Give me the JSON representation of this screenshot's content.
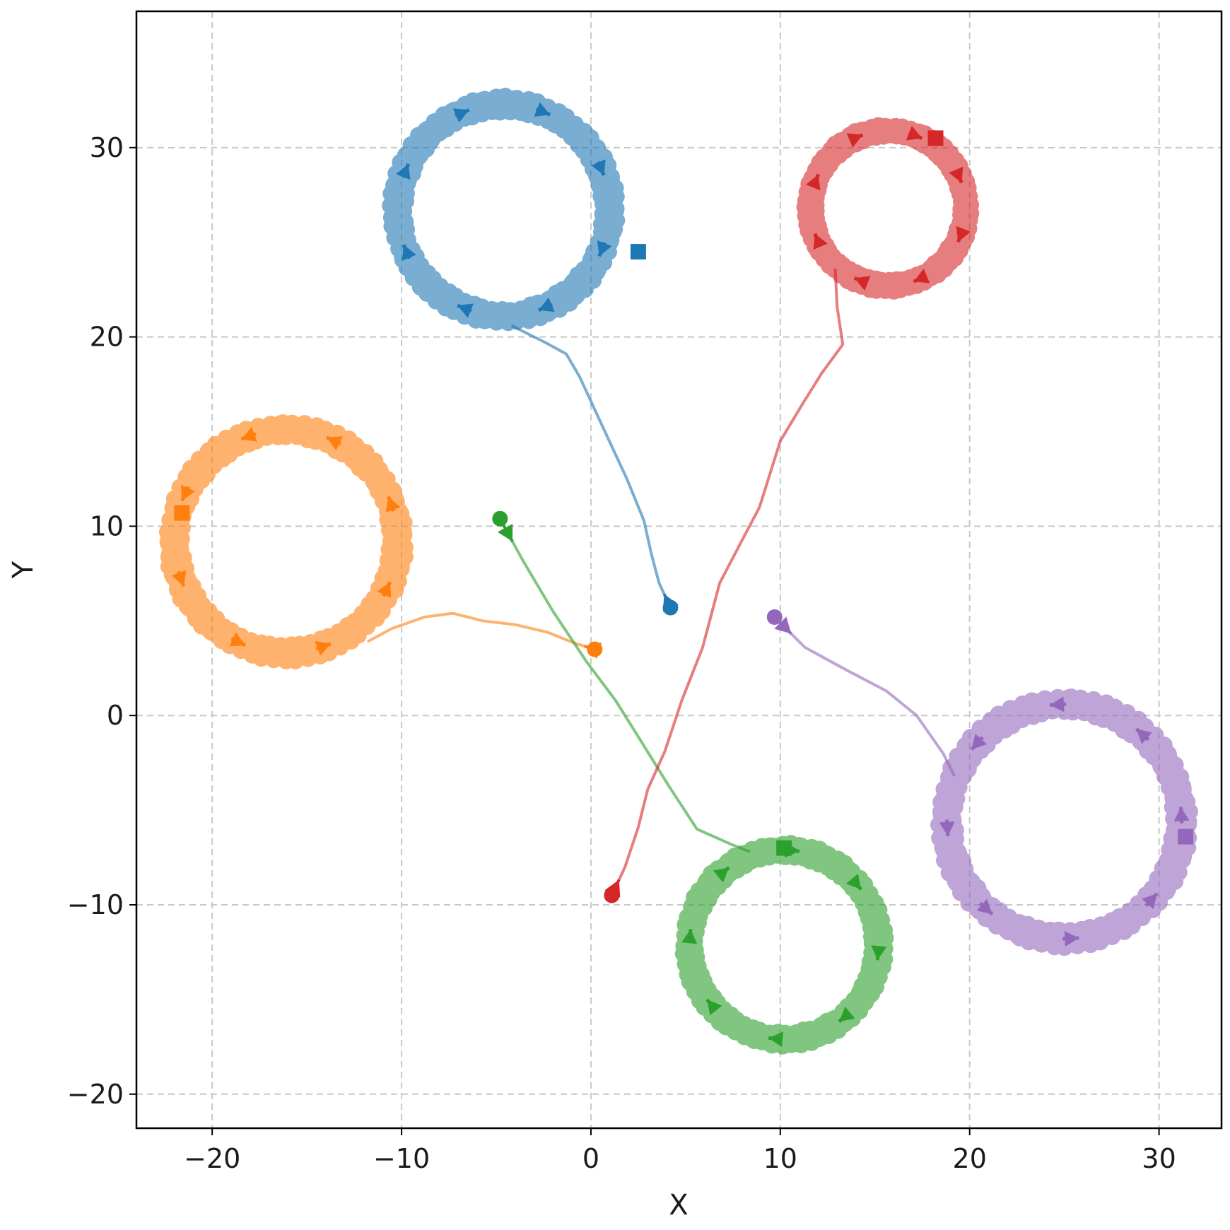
{
  "chart_data": {
    "type": "line",
    "title": "",
    "xlabel": "X",
    "ylabel": "Y",
    "xlim": [
      -24,
      33.3
    ],
    "ylim": [
      -21.8,
      37.2
    ],
    "xticks": [
      -20,
      -10,
      0,
      10,
      20,
      30
    ],
    "yticks": [
      -20,
      -10,
      0,
      10,
      20,
      30
    ],
    "xtick_labels": [
      "−20",
      "−10",
      "0",
      "10",
      "20",
      "30"
    ],
    "ytick_labels": [
      "−20",
      "−10",
      "0",
      "10",
      "20",
      "30"
    ],
    "grid": true,
    "legend": "none",
    "series": [
      {
        "color": "#1f77b4",
        "start": [
          4.2,
          5.7
        ],
        "end": [
          2.5,
          24.5
        ],
        "approach": [
          [
            4.2,
            5.7
          ],
          [
            3.6,
            7.0
          ],
          [
            3.2,
            8.5
          ],
          [
            2.8,
            10.3
          ],
          [
            1.9,
            12.5
          ],
          [
            0.6,
            15.3
          ],
          [
            -0.6,
            17.9
          ],
          [
            -1.3,
            19.1
          ],
          [
            -2.4,
            19.7
          ],
          [
            -3.6,
            20.3
          ],
          [
            -4.2,
            20.6
          ]
        ],
        "orbit": {
          "center": [
            -4.6,
            26.7
          ],
          "radius": 5.6,
          "turns": 3,
          "direction": "clockwise"
        }
      },
      {
        "color": "#ff7f0e",
        "start": [
          0.2,
          3.5
        ],
        "end": [
          -21.6,
          10.7
        ],
        "approach": [
          [
            0.2,
            3.5
          ],
          [
            -0.8,
            3.8
          ],
          [
            -2.3,
            4.4
          ],
          [
            -4.0,
            4.8
          ],
          [
            -5.7,
            5.0
          ],
          [
            -7.3,
            5.4
          ],
          [
            -8.8,
            5.2
          ],
          [
            -10.5,
            4.6
          ],
          [
            -11.8,
            3.9
          ]
        ],
        "orbit": {
          "center": [
            -16.1,
            9.2
          ],
          "radius": 5.9,
          "turns": 3,
          "direction": "counterclockwise"
        }
      },
      {
        "color": "#2ca02c",
        "start": [
          -4.8,
          10.4
        ],
        "end": [
          10.2,
          -7.0
        ],
        "approach": [
          [
            -4.8,
            10.4
          ],
          [
            -3.6,
            8.2
          ],
          [
            -2.0,
            5.5
          ],
          [
            -0.2,
            2.8
          ],
          [
            1.3,
            0.8
          ],
          [
            2.8,
            -1.6
          ],
          [
            4.1,
            -3.7
          ],
          [
            5.6,
            -6.0
          ],
          [
            7.4,
            -6.8
          ],
          [
            8.4,
            -7.2
          ]
        ],
        "orbit": {
          "center": [
            10.2,
            -12.1
          ],
          "radius": 5.0,
          "turns": 3,
          "direction": "clockwise"
        }
      },
      {
        "color": "#d62728",
        "start": [
          1.1,
          -9.5
        ],
        "end": [
          18.2,
          30.5
        ],
        "approach": [
          [
            1.1,
            -9.5
          ],
          [
            1.8,
            -8.0
          ],
          [
            2.5,
            -5.9
          ],
          [
            3.0,
            -3.9
          ],
          [
            3.9,
            -1.9
          ],
          [
            4.8,
            0.8
          ],
          [
            5.9,
            3.6
          ],
          [
            6.8,
            7.0
          ],
          [
            7.9,
            9.1
          ],
          [
            8.9,
            11.0
          ],
          [
            10.0,
            14.5
          ],
          [
            11.2,
            16.5
          ],
          [
            12.2,
            18.1
          ],
          [
            13.3,
            19.6
          ],
          [
            13.0,
            21.6
          ],
          [
            12.9,
            23.6
          ]
        ],
        "orbit": {
          "center": [
            15.7,
            26.8
          ],
          "radius": 4.1,
          "turns": 3,
          "direction": "clockwise"
        }
      },
      {
        "color": "#9467bd",
        "start": [
          9.7,
          5.2
        ],
        "end": [
          31.4,
          -6.4
        ],
        "approach": [
          [
            9.7,
            5.2
          ],
          [
            11.3,
            3.6
          ],
          [
            13.5,
            2.4
          ],
          [
            15.6,
            1.3
          ],
          [
            17.2,
            0.0
          ],
          [
            18.6,
            -2.0
          ],
          [
            19.2,
            -3.2
          ]
        ],
        "orbit": {
          "center": [
            25.0,
            -5.6
          ],
          "radius": 6.2,
          "turns": 3,
          "direction": "counterclockwise"
        }
      }
    ]
  }
}
